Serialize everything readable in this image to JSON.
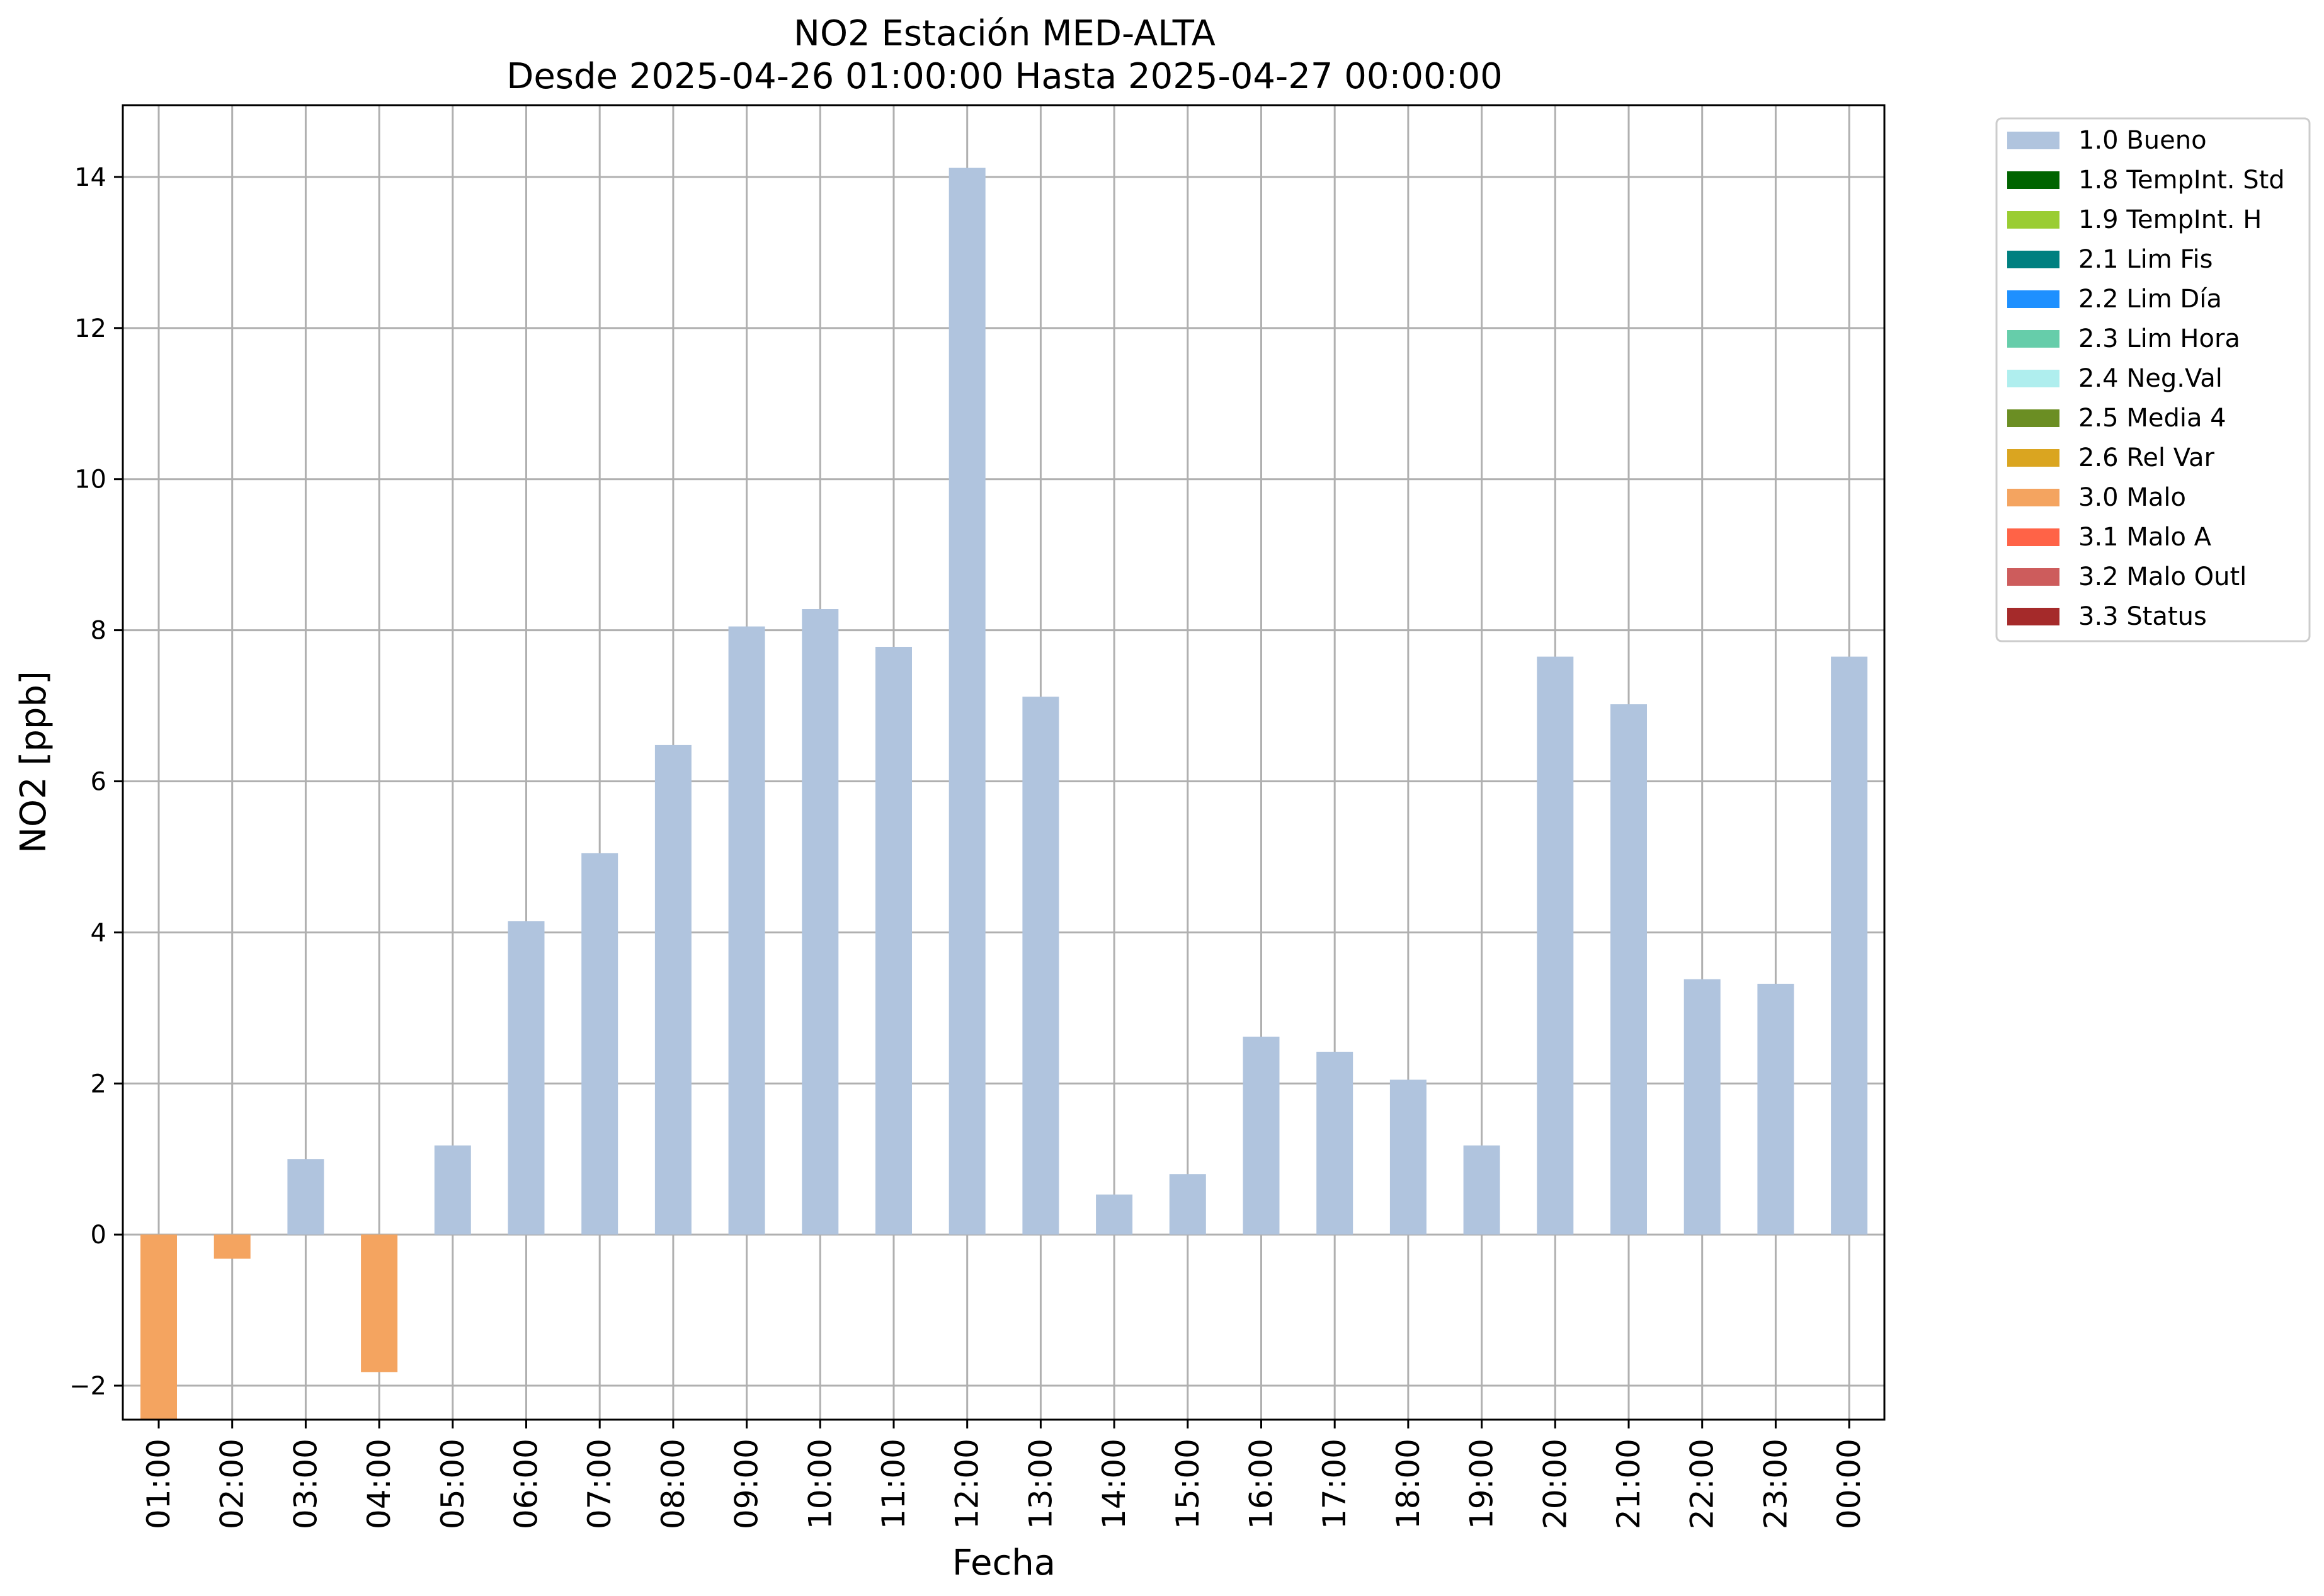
{
  "chart_data": {
    "type": "bar",
    "title": "NO2 Estación MED-ALTA",
    "subtitle": "Desde 2025-04-26 01:00:00 Hasta 2025-04-27 00:00:00",
    "xlabel": "Fecha",
    "ylabel": "NO2 [ppb]",
    "ylim": [
      -2.45,
      14.95
    ],
    "yticks": [
      -2,
      0,
      2,
      4,
      6,
      8,
      10,
      12,
      14
    ],
    "ytick_labels": [
      "−2",
      "0",
      "2",
      "4",
      "6",
      "8",
      "10",
      "12",
      "14"
    ],
    "grid": true,
    "legend_position": "outside-top-right",
    "categories": [
      "01:00",
      "02:00",
      "03:00",
      "04:00",
      "05:00",
      "06:00",
      "07:00",
      "08:00",
      "09:00",
      "10:00",
      "11:00",
      "12:00",
      "13:00",
      "14:00",
      "15:00",
      "16:00",
      "17:00",
      "18:00",
      "19:00",
      "20:00",
      "21:00",
      "22:00",
      "23:00",
      "00:00"
    ],
    "values": [
      -2.45,
      -0.32,
      1.0,
      -1.82,
      1.18,
      4.15,
      5.05,
      6.48,
      8.05,
      8.28,
      7.78,
      14.12,
      7.12,
      0.53,
      0.8,
      2.62,
      2.42,
      2.05,
      1.18,
      7.65,
      7.02,
      3.38,
      3.32,
      7.65
    ],
    "flags": [
      "3.0 Malo",
      "3.0 Malo",
      "1.0 Bueno",
      "3.0 Malo",
      "1.0 Bueno",
      "1.0 Bueno",
      "1.0 Bueno",
      "1.0 Bueno",
      "1.0 Bueno",
      "1.0 Bueno",
      "1.0 Bueno",
      "1.0 Bueno",
      "1.0 Bueno",
      "1.0 Bueno",
      "1.0 Bueno",
      "1.0 Bueno",
      "1.0 Bueno",
      "1.0 Bueno",
      "1.0 Bueno",
      "1.0 Bueno",
      "1.0 Bueno",
      "1.0 Bueno",
      "1.0 Bueno",
      "1.0 Bueno"
    ],
    "legend": [
      {
        "label": "1.0 Bueno",
        "color": "#b0c4de"
      },
      {
        "label": "1.8 TempInt. Std",
        "color": "#006400"
      },
      {
        "label": "1.9 TempInt. H",
        "color": "#9acd32"
      },
      {
        "label": "2.1 Lim Fis",
        "color": "#008080"
      },
      {
        "label": "2.2 Lim Día",
        "color": "#1e90ff"
      },
      {
        "label": "2.3 Lim Hora",
        "color": "#66cdaa"
      },
      {
        "label": "2.4 Neg.Val",
        "color": "#afeeee"
      },
      {
        "label": "2.5 Media 4",
        "color": "#6b8e23"
      },
      {
        "label": "2.6 Rel Var",
        "color": "#daa520"
      },
      {
        "label": "3.0 Malo",
        "color": "#f4a460"
      },
      {
        "label": "3.1 Malo A",
        "color": "#ff6347"
      },
      {
        "label": "3.2 Malo Outl",
        "color": "#cd5c5c"
      },
      {
        "label": "3.3 Status",
        "color": "#a52a2a"
      }
    ]
  }
}
